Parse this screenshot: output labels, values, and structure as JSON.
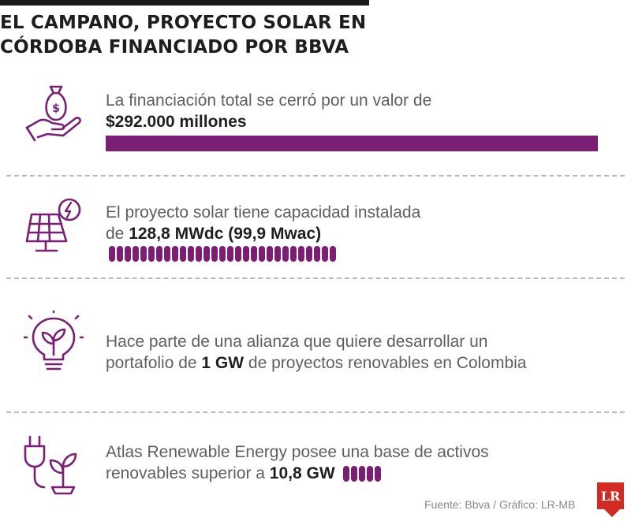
{
  "header": {
    "title_line1": "EL CAMPANO, PROYECTO SOLAR EN",
    "title_line2": "CÓRDOBA FINANCIADO POR BBVA"
  },
  "items": [
    {
      "icon": "money-bag-hand-icon",
      "line1": "La financiación total se cerró por un valor de",
      "bold": "$292.000 millones",
      "bar_type": "full"
    },
    {
      "icon": "solar-panel-icon",
      "line1": "El proyecto solar tiene capacidad instalada",
      "prefix": "de ",
      "bold": "128,8 MWdc (99,9 Mwac)",
      "pill_count": 29
    },
    {
      "icon": "lightbulb-leaf-icon",
      "line1_prefix": "Hace parte de una alianza que quiere desarrollar un",
      "line2_prefix": "portafolio de ",
      "bold": "1 GW",
      "line2_suffix": " de proyectos renovables en Colombia"
    },
    {
      "icon": "plug-plant-icon",
      "line1": "Atlas Renewable Energy posee una base de activos",
      "prefix": "renovables superior a ",
      "bold": "10,8 GW",
      "pill_count": 5
    }
  ],
  "footer": {
    "source": "Fuente: Bbva / Gráfico: LR-MB",
    "logo": "LR"
  },
  "colors": {
    "accent": "#7a1f74",
    "title": "#1e1e1e",
    "text": "#5f5f5f",
    "logo": "#d42a24"
  }
}
